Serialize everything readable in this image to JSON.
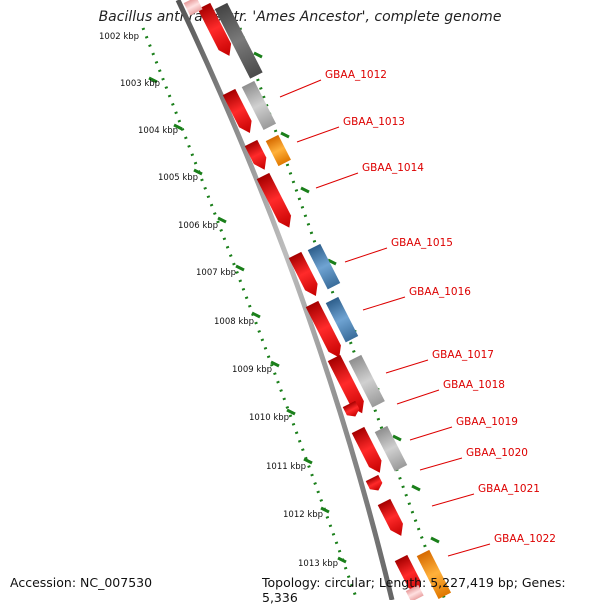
{
  "title": "Bacillus anthracis str. 'Ames Ancestor', complete genome",
  "footer": {
    "accession": "Accession: NC_007530",
    "topology": "Topology: circular; Length: 5,227,419 bp; Genes: 5,336"
  },
  "scale_labels": [
    "1002 kbp",
    "1003 kbp",
    "1004 kbp",
    "1005 kbp",
    "1006 kbp",
    "1007 kbp",
    "1008 kbp",
    "1009 kbp",
    "1010 kbp",
    "1011 kbp",
    "1012 kbp",
    "1013 kbp"
  ],
  "gene_labels": [
    "GBAA_1012",
    "GBAA_1013",
    "GBAA_1014",
    "GBAA_1015",
    "GBAA_1016",
    "GBAA_1017",
    "GBAA_1018",
    "GBAA_1019",
    "GBAA_1020",
    "GBAA_1021",
    "GBAA_1022"
  ],
  "colors": {
    "backbone": "#8a8a8a",
    "cds": "#ee1111",
    "label": "#dd0000",
    "ticks": "#1a7f1a",
    "gray_feature": "#b8b8b8",
    "dark_feature": "#666666",
    "orange_feature": "#ff9a00",
    "blue_feature": "#4f86b8"
  }
}
